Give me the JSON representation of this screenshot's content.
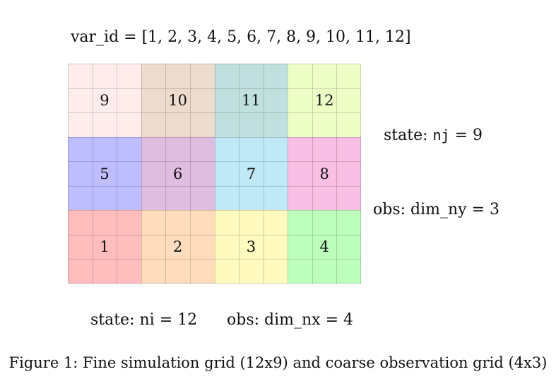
{
  "header": {
    "var_id_text": "var_id = [1, 2, 3, 4, 5, 6, 7, 8, 9, 10, 11, 12]"
  },
  "grid": {
    "fine_nx": 12,
    "fine_ny": 9,
    "coarse_nx": 4,
    "coarse_ny": 3,
    "blocks": [
      {
        "label": "9",
        "color": "#ffecec"
      },
      {
        "label": "10",
        "color": "#eddccd"
      },
      {
        "label": "11",
        "color": "#bfe0de"
      },
      {
        "label": "12",
        "color": "#edffc6"
      },
      {
        "label": "5",
        "color": "#bdbdff"
      },
      {
        "label": "6",
        "color": "#dfbde0"
      },
      {
        "label": "7",
        "color": "#bfe9f7"
      },
      {
        "label": "8",
        "color": "#f9bfe4"
      },
      {
        "label": "1",
        "color": "#ffbdbd"
      },
      {
        "label": "2",
        "color": "#ffdcbc"
      },
      {
        "label": "3",
        "color": "#fffabd"
      },
      {
        "label": "4",
        "color": "#bdffbd"
      }
    ]
  },
  "labels": {
    "state_nj_prefix": "state: ",
    "state_nj_code": "nj",
    "state_nj_suffix": " = 9",
    "obs_dim_ny": "obs: dim_ny = 3",
    "state_ni": "state: ni = 12",
    "obs_dim_nx": "obs: dim_nx = 4"
  },
  "caption": "Figure 1: Fine simulation grid (12x9) and coarse observation grid (4x3)"
}
